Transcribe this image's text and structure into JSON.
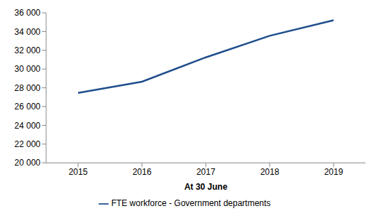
{
  "chart_data": {
    "type": "line",
    "x_label": "At 30 June",
    "categories": [
      "2015",
      "2016",
      "2017",
      "2018",
      "2019"
    ],
    "series": [
      {
        "name": "FTE workforce - Government departments",
        "color": "#1f4e8c",
        "values": [
          27450,
          28650,
          31250,
          33550,
          35200
        ],
        "marker": "none",
        "line_style": "solid"
      }
    ],
    "ylim": [
      20000,
      36000
    ],
    "yticks": [
      {
        "value": 20000,
        "label": "20 000"
      },
      {
        "value": 22000,
        "label": "22 000"
      },
      {
        "value": 24000,
        "label": "24 000"
      },
      {
        "value": 26000,
        "label": "26 000"
      },
      {
        "value": 28000,
        "label": "28 000"
      },
      {
        "value": 30000,
        "label": "30 000"
      },
      {
        "value": 32000,
        "label": "32 000"
      },
      {
        "value": 34000,
        "label": "34 000"
      },
      {
        "value": 36000,
        "label": "36 000"
      }
    ],
    "grid": false,
    "legend": "bottom"
  }
}
